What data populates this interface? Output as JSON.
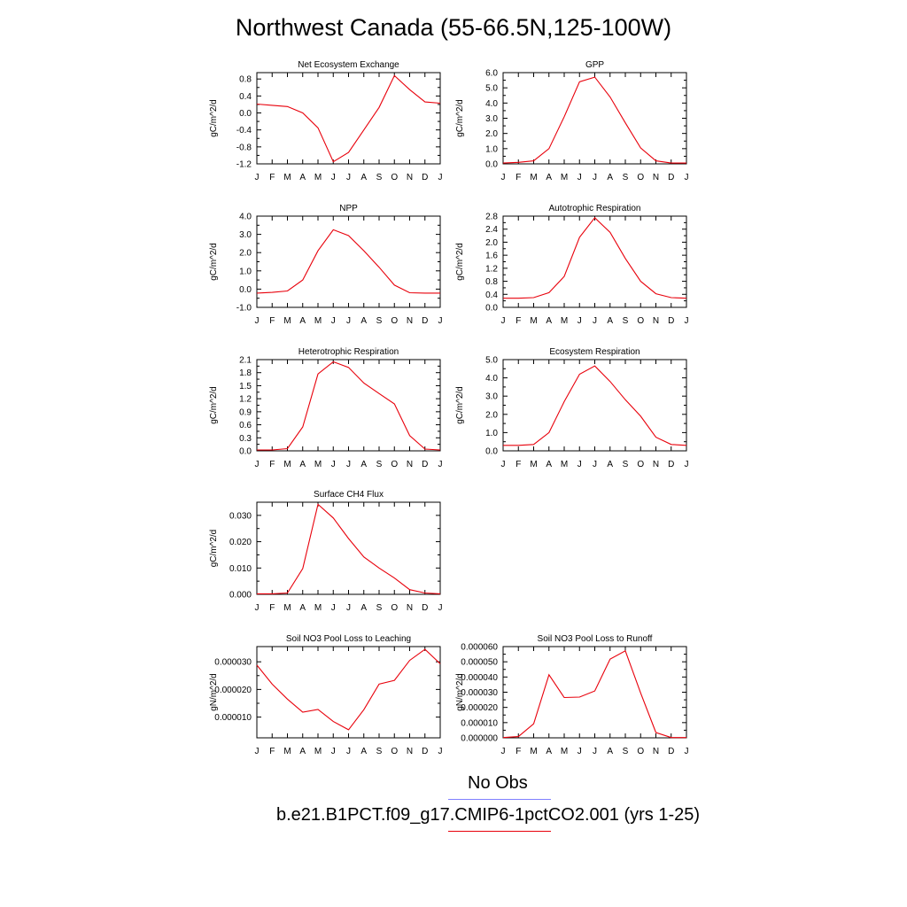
{
  "title": "Northwest Canada (55-66.5N,125-100W)",
  "colors": {
    "model": "#e8000b",
    "obs": "#8080ff",
    "axis": "#000000"
  },
  "legend": {
    "obs_label": "No Obs",
    "model_label": "b.e21.B1PCT.f09_g17.CMIP6-1pctCO2.001 (yrs 1-25)"
  },
  "chart_data": [
    {
      "type": "line",
      "title": "Net Ecosystem Exchange",
      "ylabel": "gC/m^2/d",
      "x": [
        "J",
        "F",
        "M",
        "A",
        "M",
        "J",
        "J",
        "A",
        "S",
        "O",
        "N",
        "D",
        "J"
      ],
      "ylim": [
        -1.2,
        0.95
      ],
      "yticks": [
        "0.8",
        "0.4",
        "0.0",
        "-0.4",
        "-0.8",
        "-1.2"
      ],
      "ytick_values": [
        0.8,
        0.4,
        0.0,
        -0.4,
        -0.8,
        -1.2
      ],
      "series": [
        {
          "values": [
            0.21,
            0.18,
            0.15,
            0.0,
            -0.35,
            -1.15,
            -0.93,
            -0.4,
            0.13,
            0.88,
            0.55,
            0.26,
            0.23
          ]
        }
      ]
    },
    {
      "type": "line",
      "title": "GPP",
      "ylabel": "gC/m^2/d",
      "x": [
        "J",
        "F",
        "M",
        "A",
        "M",
        "J",
        "J",
        "A",
        "S",
        "O",
        "N",
        "D",
        "J"
      ],
      "ylim": [
        0,
        6.0
      ],
      "yticks": [
        "6.0",
        "5.0",
        "4.0",
        "3.0",
        "2.0",
        "1.0",
        "0.0"
      ],
      "ytick_values": [
        6,
        5,
        4,
        3,
        2,
        1,
        0
      ],
      "series": [
        {
          "values": [
            0.05,
            0.1,
            0.2,
            1.0,
            3.1,
            5.4,
            5.7,
            4.4,
            2.7,
            1.05,
            0.2,
            0.05,
            0.05
          ]
        }
      ]
    },
    {
      "type": "line",
      "title": "NPP",
      "ylabel": "gC/m^2/d",
      "x": [
        "J",
        "F",
        "M",
        "A",
        "M",
        "J",
        "J",
        "A",
        "S",
        "O",
        "N",
        "D",
        "J"
      ],
      "ylim": [
        -1.0,
        4.0
      ],
      "yticks": [
        "4.0",
        "3.0",
        "2.0",
        "1.0",
        "0.0",
        "-1.0"
      ],
      "ytick_values": [
        4,
        3,
        2,
        1,
        0,
        -1
      ],
      "series": [
        {
          "values": [
            -0.22,
            -0.18,
            -0.1,
            0.5,
            2.1,
            3.25,
            2.93,
            2.1,
            1.2,
            0.22,
            -0.2,
            -0.22,
            -0.22
          ]
        }
      ]
    },
    {
      "type": "line",
      "title": "Autotrophic Respiration",
      "ylabel": "gC/m^2/d",
      "x": [
        "J",
        "F",
        "M",
        "A",
        "M",
        "J",
        "J",
        "A",
        "S",
        "O",
        "N",
        "D",
        "J"
      ],
      "ylim": [
        0,
        2.8
      ],
      "yticks": [
        "2.8",
        "2.4",
        "2.0",
        "1.6",
        "1.2",
        "0.8",
        "0.4",
        "0.0"
      ],
      "ytick_values": [
        2.8,
        2.4,
        2.0,
        1.6,
        1.2,
        0.8,
        0.4,
        0.0
      ],
      "series": [
        {
          "values": [
            0.28,
            0.28,
            0.3,
            0.45,
            0.95,
            2.15,
            2.75,
            2.3,
            1.5,
            0.8,
            0.42,
            0.3,
            0.28
          ]
        }
      ]
    },
    {
      "type": "line",
      "title": "Heterotrophic Respiration",
      "ylabel": "gC/m^2/d",
      "x": [
        "J",
        "F",
        "M",
        "A",
        "M",
        "J",
        "J",
        "A",
        "S",
        "O",
        "N",
        "D",
        "J"
      ],
      "ylim": [
        0,
        2.1
      ],
      "yticks": [
        "2.1",
        "1.8",
        "1.5",
        "1.2",
        "0.9",
        "0.6",
        "0.3",
        "0.0"
      ],
      "ytick_values": [
        2.1,
        1.8,
        1.5,
        1.2,
        0.9,
        0.6,
        0.3,
        0.0
      ],
      "series": [
        {
          "values": [
            0.02,
            0.02,
            0.05,
            0.55,
            1.77,
            2.05,
            1.92,
            1.56,
            1.32,
            1.08,
            0.35,
            0.04,
            0.02
          ]
        }
      ]
    },
    {
      "type": "line",
      "title": "Ecosystem Respiration",
      "ylabel": "gC/m^2/d",
      "x": [
        "J",
        "F",
        "M",
        "A",
        "M",
        "J",
        "J",
        "A",
        "S",
        "O",
        "N",
        "D",
        "J"
      ],
      "ylim": [
        0,
        5.0
      ],
      "yticks": [
        "5.0",
        "4.0",
        "3.0",
        "2.0",
        "1.0",
        "0.0"
      ],
      "ytick_values": [
        5,
        4,
        3,
        2,
        1,
        0
      ],
      "series": [
        {
          "values": [
            0.3,
            0.3,
            0.35,
            1.0,
            2.7,
            4.2,
            4.65,
            3.8,
            2.8,
            1.9,
            0.75,
            0.35,
            0.3
          ]
        }
      ]
    },
    {
      "type": "line",
      "title": "Surface CH4 Flux",
      "ylabel": "gC/m^2/d",
      "x": [
        "J",
        "F",
        "M",
        "A",
        "M",
        "J",
        "J",
        "A",
        "S",
        "O",
        "N",
        "D",
        "J"
      ],
      "ylim": [
        0,
        0.035
      ],
      "yticks": [
        "0.030",
        "0.020",
        "0.010",
        "0.000"
      ],
      "ytick_values": [
        0.03,
        0.02,
        0.01,
        0.0
      ],
      "series": [
        {
          "values": [
            0.0002,
            0.0002,
            0.0005,
            0.0098,
            0.0342,
            0.029,
            0.0212,
            0.0142,
            0.01,
            0.0062,
            0.0018,
            0.0005,
            0.0002
          ]
        }
      ]
    },
    null,
    {
      "type": "line",
      "title": "Soil NO3 Pool Loss to Leaching",
      "ylabel": "gN/m^2/d",
      "x": [
        "J",
        "F",
        "M",
        "A",
        "M",
        "J",
        "J",
        "A",
        "S",
        "O",
        "N",
        "D",
        "J"
      ],
      "ylim": [
        2.5e-06,
        3.55e-05
      ],
      "yticks": [
        "0.000030",
        "0.000020",
        "0.000010"
      ],
      "ytick_values": [
        3e-05,
        2e-05,
        1e-05
      ],
      "series": [
        {
          "values": [
            2.88e-05,
            2.19e-05,
            1.65e-05,
            1.18e-05,
            1.28e-05,
            8.4e-06,
            5.4e-06,
            1.27e-05,
            2.19e-05,
            2.33e-05,
            3.05e-05,
            3.45e-05,
            2.93e-05
          ]
        }
      ]
    },
    {
      "type": "line",
      "title": "Soil NO3 Pool Loss to Runoff",
      "ylabel": "gN/m^2/d",
      "x": [
        "J",
        "F",
        "M",
        "A",
        "M",
        "J",
        "J",
        "A",
        "S",
        "O",
        "N",
        "D",
        "J"
      ],
      "ylim": [
        0,
        6e-05
      ],
      "yticks": [
        "0.000060",
        "0.000050",
        "0.000040",
        "0.000030",
        "0.000020",
        "0.000010",
        "0.000000"
      ],
      "ytick_values": [
        6e-05,
        5e-05,
        4e-05,
        3e-05,
        2e-05,
        1e-05,
        0.0
      ],
      "series": [
        {
          "values": [
            2e-07,
            8e-07,
            9.2e-06,
            4.15e-05,
            2.65e-05,
            2.68e-05,
            3.08e-05,
            5.18e-05,
            5.72e-05,
            2.95e-05,
            3.5e-06,
            2e-07,
            2e-07
          ]
        }
      ]
    }
  ]
}
